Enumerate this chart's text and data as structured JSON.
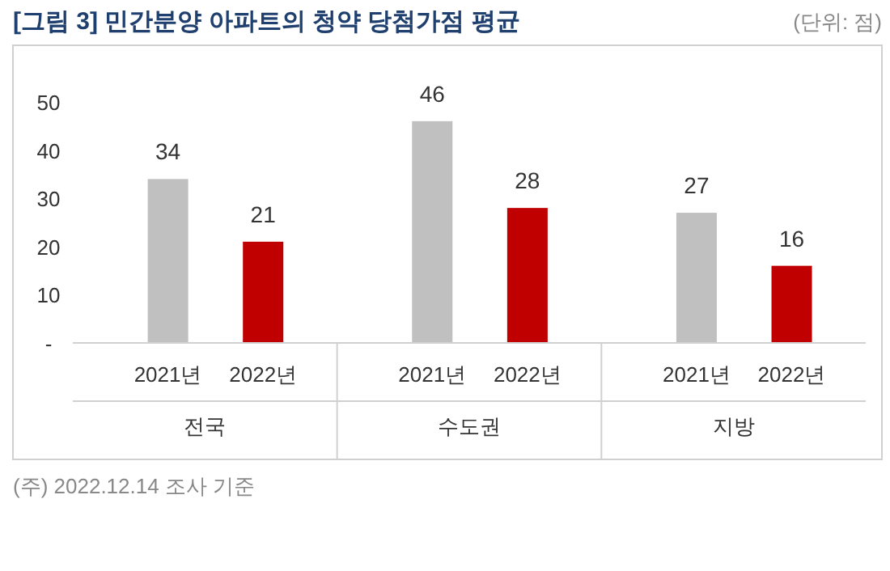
{
  "chart_data": {
    "type": "bar",
    "title": "[그림 3] 민간분양 아파트의 청약 당첨가점 평균",
    "subtitle": "(단위: 점)",
    "categories": [
      "전국",
      "수도권",
      "지방"
    ],
    "series": [
      {
        "name": "2021년",
        "color": "#c0c0c0",
        "values": [
          34,
          46,
          27
        ]
      },
      {
        "name": "2022년",
        "color": "#c00000",
        "values": [
          21,
          28,
          16
        ]
      }
    ],
    "ylim": [
      0,
      50
    ],
    "yticks": [
      {
        "value": 0,
        "label": "-"
      },
      10,
      20,
      30,
      40,
      50
    ],
    "data_labels": true,
    "annotations": [
      "(주) 2022.12.14 조사 기준"
    ]
  }
}
